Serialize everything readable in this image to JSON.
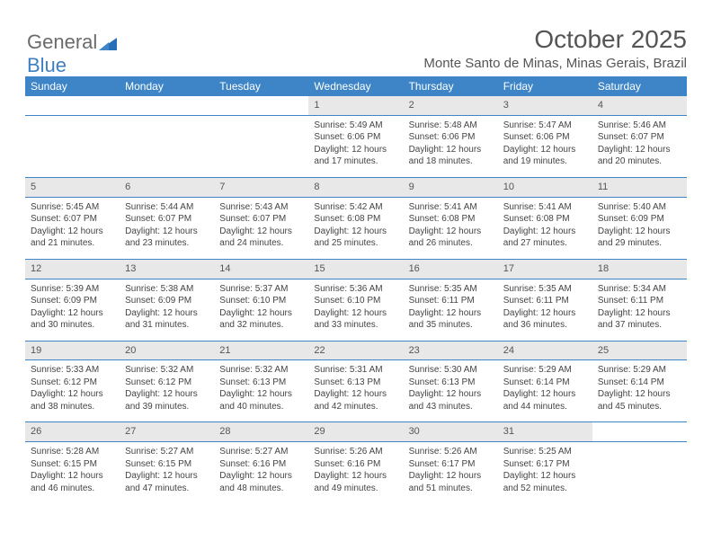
{
  "brand": {
    "word1": "General",
    "word2": "Blue"
  },
  "title": "October 2025",
  "subtitle": "Monte Santo de Minas, Minas Gerais, Brazil",
  "colors": {
    "header_bg": "#3d85c6",
    "header_text": "#ffffff",
    "daynum_bg": "#e8e8e8",
    "rule": "#3d85c6",
    "text": "#444444"
  },
  "daysOfWeek": [
    "Sunday",
    "Monday",
    "Tuesday",
    "Wednesday",
    "Thursday",
    "Friday",
    "Saturday"
  ],
  "weeks": [
    [
      null,
      null,
      null,
      {
        "n": "1",
        "sr": "Sunrise: 5:49 AM",
        "ss": "Sunset: 6:06 PM",
        "dl": "Daylight: 12 hours and 17 minutes."
      },
      {
        "n": "2",
        "sr": "Sunrise: 5:48 AM",
        "ss": "Sunset: 6:06 PM",
        "dl": "Daylight: 12 hours and 18 minutes."
      },
      {
        "n": "3",
        "sr": "Sunrise: 5:47 AM",
        "ss": "Sunset: 6:06 PM",
        "dl": "Daylight: 12 hours and 19 minutes."
      },
      {
        "n": "4",
        "sr": "Sunrise: 5:46 AM",
        "ss": "Sunset: 6:07 PM",
        "dl": "Daylight: 12 hours and 20 minutes."
      }
    ],
    [
      {
        "n": "5",
        "sr": "Sunrise: 5:45 AM",
        "ss": "Sunset: 6:07 PM",
        "dl": "Daylight: 12 hours and 21 minutes."
      },
      {
        "n": "6",
        "sr": "Sunrise: 5:44 AM",
        "ss": "Sunset: 6:07 PM",
        "dl": "Daylight: 12 hours and 23 minutes."
      },
      {
        "n": "7",
        "sr": "Sunrise: 5:43 AM",
        "ss": "Sunset: 6:07 PM",
        "dl": "Daylight: 12 hours and 24 minutes."
      },
      {
        "n": "8",
        "sr": "Sunrise: 5:42 AM",
        "ss": "Sunset: 6:08 PM",
        "dl": "Daylight: 12 hours and 25 minutes."
      },
      {
        "n": "9",
        "sr": "Sunrise: 5:41 AM",
        "ss": "Sunset: 6:08 PM",
        "dl": "Daylight: 12 hours and 26 minutes."
      },
      {
        "n": "10",
        "sr": "Sunrise: 5:41 AM",
        "ss": "Sunset: 6:08 PM",
        "dl": "Daylight: 12 hours and 27 minutes."
      },
      {
        "n": "11",
        "sr": "Sunrise: 5:40 AM",
        "ss": "Sunset: 6:09 PM",
        "dl": "Daylight: 12 hours and 29 minutes."
      }
    ],
    [
      {
        "n": "12",
        "sr": "Sunrise: 5:39 AM",
        "ss": "Sunset: 6:09 PM",
        "dl": "Daylight: 12 hours and 30 minutes."
      },
      {
        "n": "13",
        "sr": "Sunrise: 5:38 AM",
        "ss": "Sunset: 6:09 PM",
        "dl": "Daylight: 12 hours and 31 minutes."
      },
      {
        "n": "14",
        "sr": "Sunrise: 5:37 AM",
        "ss": "Sunset: 6:10 PM",
        "dl": "Daylight: 12 hours and 32 minutes."
      },
      {
        "n": "15",
        "sr": "Sunrise: 5:36 AM",
        "ss": "Sunset: 6:10 PM",
        "dl": "Daylight: 12 hours and 33 minutes."
      },
      {
        "n": "16",
        "sr": "Sunrise: 5:35 AM",
        "ss": "Sunset: 6:11 PM",
        "dl": "Daylight: 12 hours and 35 minutes."
      },
      {
        "n": "17",
        "sr": "Sunrise: 5:35 AM",
        "ss": "Sunset: 6:11 PM",
        "dl": "Daylight: 12 hours and 36 minutes."
      },
      {
        "n": "18",
        "sr": "Sunrise: 5:34 AM",
        "ss": "Sunset: 6:11 PM",
        "dl": "Daylight: 12 hours and 37 minutes."
      }
    ],
    [
      {
        "n": "19",
        "sr": "Sunrise: 5:33 AM",
        "ss": "Sunset: 6:12 PM",
        "dl": "Daylight: 12 hours and 38 minutes."
      },
      {
        "n": "20",
        "sr": "Sunrise: 5:32 AM",
        "ss": "Sunset: 6:12 PM",
        "dl": "Daylight: 12 hours and 39 minutes."
      },
      {
        "n": "21",
        "sr": "Sunrise: 5:32 AM",
        "ss": "Sunset: 6:13 PM",
        "dl": "Daylight: 12 hours and 40 minutes."
      },
      {
        "n": "22",
        "sr": "Sunrise: 5:31 AM",
        "ss": "Sunset: 6:13 PM",
        "dl": "Daylight: 12 hours and 42 minutes."
      },
      {
        "n": "23",
        "sr": "Sunrise: 5:30 AM",
        "ss": "Sunset: 6:13 PM",
        "dl": "Daylight: 12 hours and 43 minutes."
      },
      {
        "n": "24",
        "sr": "Sunrise: 5:29 AM",
        "ss": "Sunset: 6:14 PM",
        "dl": "Daylight: 12 hours and 44 minutes."
      },
      {
        "n": "25",
        "sr": "Sunrise: 5:29 AM",
        "ss": "Sunset: 6:14 PM",
        "dl": "Daylight: 12 hours and 45 minutes."
      }
    ],
    [
      {
        "n": "26",
        "sr": "Sunrise: 5:28 AM",
        "ss": "Sunset: 6:15 PM",
        "dl": "Daylight: 12 hours and 46 minutes."
      },
      {
        "n": "27",
        "sr": "Sunrise: 5:27 AM",
        "ss": "Sunset: 6:15 PM",
        "dl": "Daylight: 12 hours and 47 minutes."
      },
      {
        "n": "28",
        "sr": "Sunrise: 5:27 AM",
        "ss": "Sunset: 6:16 PM",
        "dl": "Daylight: 12 hours and 48 minutes."
      },
      {
        "n": "29",
        "sr": "Sunrise: 5:26 AM",
        "ss": "Sunset: 6:16 PM",
        "dl": "Daylight: 12 hours and 49 minutes."
      },
      {
        "n": "30",
        "sr": "Sunrise: 5:26 AM",
        "ss": "Sunset: 6:17 PM",
        "dl": "Daylight: 12 hours and 51 minutes."
      },
      {
        "n": "31",
        "sr": "Sunrise: 5:25 AM",
        "ss": "Sunset: 6:17 PM",
        "dl": "Daylight: 12 hours and 52 minutes."
      },
      null
    ]
  ]
}
